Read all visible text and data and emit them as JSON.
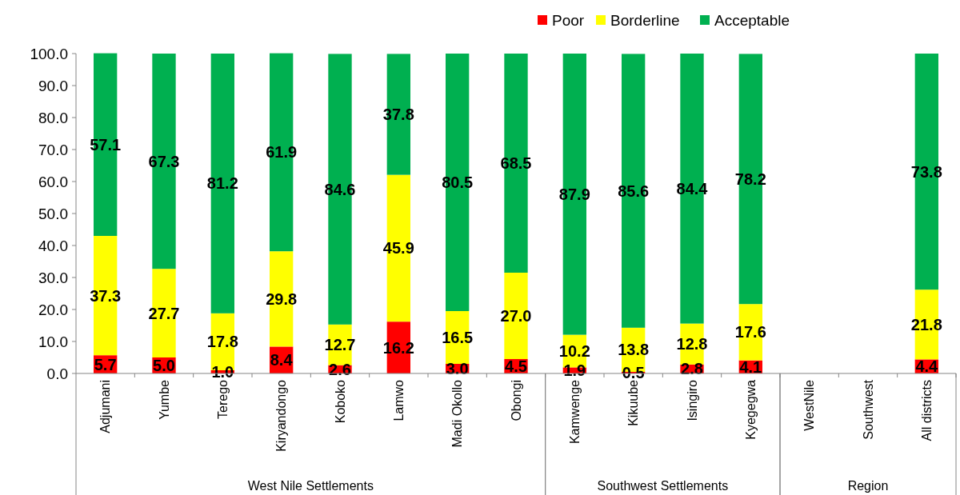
{
  "chart_data": {
    "type": "bar",
    "stacked": true,
    "categories": [
      "Adjumani",
      "Yumbe",
      "Terego",
      "Kiryandongo",
      "Koboko",
      "Lamwo",
      "Madi Okollo",
      "Obongi",
      "Kamwenge",
      "Kikuube",
      "Isingiro",
      "Kyegegwa",
      "WestNile",
      "Southwest",
      "All districts"
    ],
    "series": [
      {
        "name": "Poor",
        "color": "#ff0000",
        "values": [
          5.7,
          5.0,
          1.0,
          8.4,
          2.6,
          16.2,
          3.0,
          4.5,
          1.9,
          0.5,
          2.8,
          4.1,
          null,
          null,
          4.4
        ],
        "value_labels": [
          "5.7",
          "5.0",
          "1.0",
          "8.4",
          "2.6",
          "16.2",
          "3.0",
          "4.5",
          "1.9",
          "0.5",
          "2.8",
          "4.1",
          null,
          null,
          "4.4"
        ]
      },
      {
        "name": "Borderline",
        "color": "#ffff00",
        "values": [
          37.3,
          27.7,
          17.8,
          29.8,
          12.7,
          45.9,
          16.5,
          27.0,
          10.2,
          13.8,
          12.8,
          17.6,
          null,
          null,
          21.8
        ],
        "value_labels": [
          "37.3",
          "27.7",
          "17.8",
          "29.8",
          "12.7",
          "45.9",
          "16.5",
          "27.0",
          "10.2",
          "13.8",
          "12.8",
          "17.6",
          null,
          null,
          "21.8"
        ]
      },
      {
        "name": "Acceptable",
        "color": "#00b050",
        "values": [
          57.1,
          67.3,
          81.2,
          61.9,
          84.6,
          37.8,
          80.5,
          68.5,
          87.9,
          85.6,
          84.4,
          78.2,
          null,
          null,
          73.8
        ],
        "value_labels": [
          "57.1",
          "67.3",
          "81.2",
          "61.9",
          "84.6",
          "37.8",
          "80.5",
          "68.5",
          "87.9",
          "85.6",
          "84.4",
          "78.2",
          null,
          null,
          "73.8"
        ]
      }
    ],
    "ylim": [
      0,
      100
    ],
    "yticks": [
      {
        "value": 0,
        "label": "0.0"
      },
      {
        "value": 10,
        "label": "10.0"
      },
      {
        "value": 20,
        "label": "20.0"
      },
      {
        "value": 30,
        "label": "30.0"
      },
      {
        "value": 40,
        "label": "40.0"
      },
      {
        "value": 50,
        "label": "50.0"
      },
      {
        "value": 60,
        "label": "60.0"
      },
      {
        "value": 70,
        "label": "70.0"
      },
      {
        "value": 80,
        "label": "80.0"
      },
      {
        "value": 90,
        "label": "90.0"
      },
      {
        "value": 100,
        "label": "100.0"
      }
    ],
    "annotations": [
      "West Nile Settlements",
      "Southwest Settlements",
      "Region"
    ],
    "legend": "top right",
    "grid": false
  }
}
